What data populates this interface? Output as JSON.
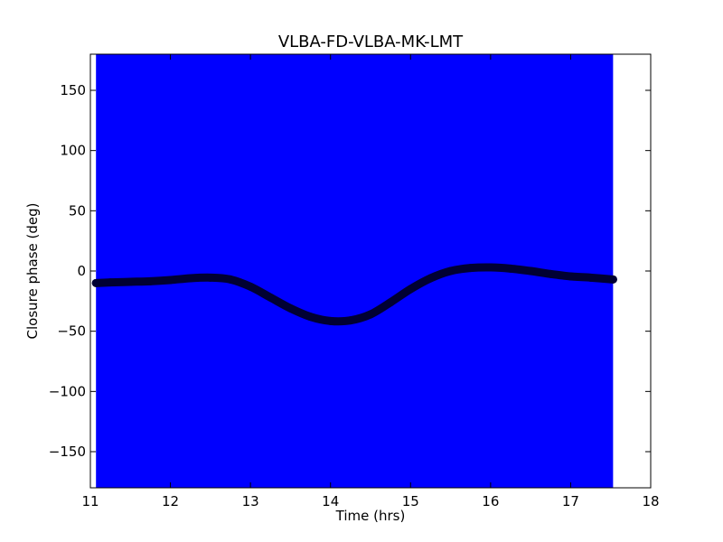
{
  "chart_data": {
    "type": "scatter",
    "title": "VLBA-FD-VLBA-MK-LMT",
    "xlabel": "Time (hrs)",
    "ylabel": "Closure phase (deg)",
    "xlim": [
      11,
      18
    ],
    "ylim": [
      -180,
      180
    ],
    "xticks": [
      11,
      12,
      13,
      14,
      15,
      16,
      17,
      18
    ],
    "yticks": [
      -150,
      -100,
      -50,
      0,
      50,
      100,
      150
    ],
    "grid": false,
    "colors": {
      "band": "#0000ff",
      "markers": "#000033",
      "frame": "#000000"
    },
    "band": {
      "x_start": 11.07,
      "x_end": 17.53,
      "y_min": -180,
      "y_max": 180
    },
    "series": [
      {
        "x": [
          11.07,
          11.25,
          11.5,
          11.75,
          12.0,
          12.25,
          12.5,
          12.75,
          13.0,
          13.25,
          13.5,
          13.75,
          14.0,
          14.25,
          14.5,
          14.75,
          15.0,
          15.25,
          15.5,
          15.75,
          16.0,
          16.25,
          16.5,
          16.75,
          17.0,
          17.25,
          17.53
        ],
        "y": [
          -10,
          -9.5,
          -9,
          -8.5,
          -7.5,
          -6,
          -5.5,
          -7,
          -13,
          -22,
          -31,
          -38,
          -41.5,
          -41,
          -36,
          -26,
          -15,
          -6,
          0,
          2.5,
          3,
          2,
          0,
          -2.5,
          -4.5,
          -5.5,
          -7
        ]
      }
    ]
  }
}
